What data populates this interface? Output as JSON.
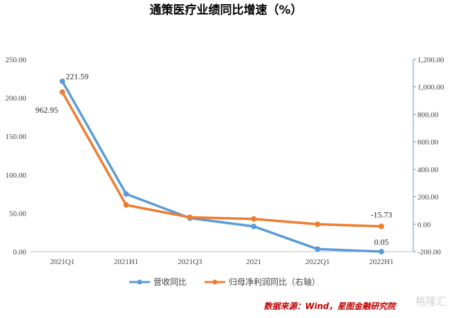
{
  "chart_data": {
    "type": "line",
    "title": "通策医疗业绩同比增速（%）",
    "categories": [
      "2021Q1",
      "2021H1",
      "2021Q3",
      "2021",
      "2022Q1",
      "2022H1"
    ],
    "series": [
      {
        "name": "营收同比",
        "axis": "left",
        "color": "#5B9BD5",
        "values": [
          221.59,
          75.0,
          43.6,
          32.8,
          3.3,
          0.05
        ]
      },
      {
        "name": "归母净利润同比（右轴）",
        "axis": "right",
        "color": "#ED7D31",
        "values": [
          962.95,
          140.0,
          50.0,
          38.0,
          -0.5,
          -15.73
        ]
      }
    ],
    "left_axis": {
      "ylim": [
        0,
        250
      ],
      "ticks": [
        0,
        50,
        100,
        150,
        200,
        250
      ],
      "tick_labels": [
        "0.00",
        "50.00",
        "100.00",
        "150.00",
        "200.00",
        "250.00"
      ]
    },
    "right_axis": {
      "ylim": [
        -200,
        1200
      ],
      "ticks": [
        -200,
        0,
        200,
        400,
        600,
        800,
        1000,
        1200
      ],
      "tick_labels": [
        "-200.00",
        "0.00",
        "200.00",
        "400.00",
        "600.00",
        "800.00",
        "1,000.00",
        "1,200.00"
      ]
    },
    "data_labels": [
      {
        "series": 0,
        "index": 0,
        "text": "221.59"
      },
      {
        "series": 1,
        "index": 0,
        "text": "962.95"
      },
      {
        "series": 1,
        "index": 5,
        "text": "-15.73"
      },
      {
        "series": 0,
        "index": 5,
        "text": "0.05"
      }
    ],
    "legend": {
      "position": "bottom"
    },
    "grid": false
  },
  "source": "数据来源：Wind，星图金融研究院",
  "watermark": "格隆汇"
}
